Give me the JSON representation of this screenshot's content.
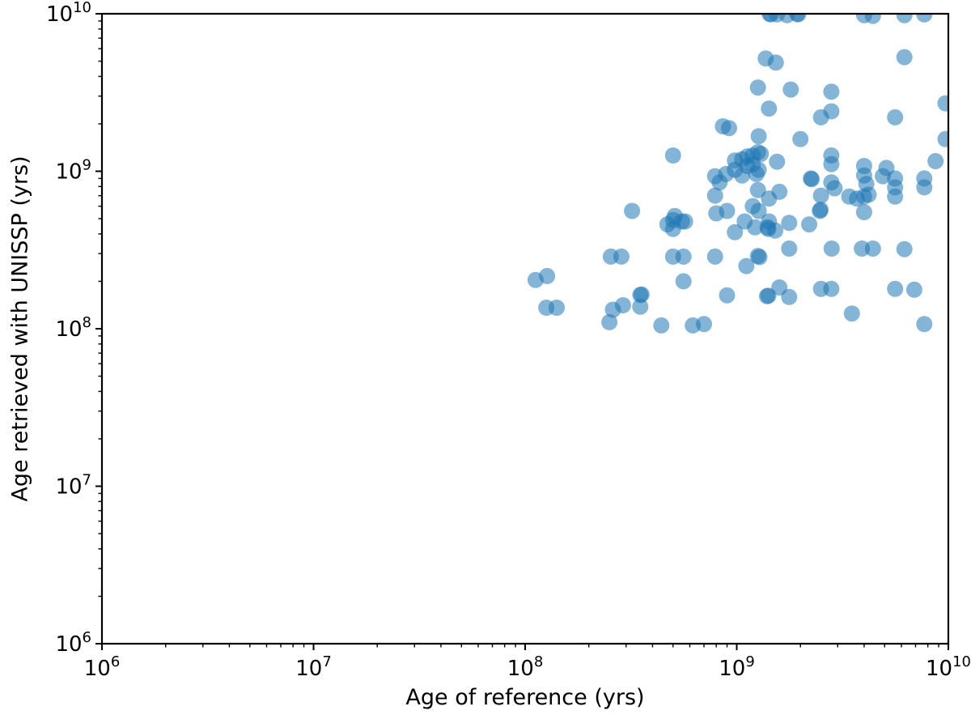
{
  "figure": {
    "background": "#ffffff",
    "axis_color": "#000000"
  },
  "chart_data": {
    "type": "scatter",
    "title": "",
    "xlabel": "Age of reference (yrs)",
    "ylabel": "Age retrieved with UNISSP (yrs)",
    "xscale": "log",
    "yscale": "log",
    "xlim": [
      1000000.0,
      10000000000.0
    ],
    "ylim": [
      1000000.0,
      10000000000.0
    ],
    "x_tick_exponents": [
      6,
      7,
      8,
      9,
      10
    ],
    "y_tick_exponents": [
      6,
      7,
      8,
      9,
      10
    ],
    "grid": false,
    "legend": null,
    "marker": {
      "color": "#1f77b4",
      "opacity": 0.55,
      "radius_px": 10
    },
    "points": [
      [
        1430000000.0,
        10000000000.0
      ],
      [
        1450000000.0,
        9900000000.0
      ],
      [
        1550000000.0,
        9900000000.0
      ],
      [
        1730000000.0,
        9800000000.0
      ],
      [
        1930000000.0,
        10000000000.0
      ],
      [
        1950000000.0,
        9900000000.0
      ],
      [
        4000000000.0,
        9800000000.0
      ],
      [
        4400000000.0,
        9700000000.0
      ],
      [
        6200000000.0,
        9800000000.0
      ],
      [
        7700000000.0,
        9900000000.0
      ],
      [
        1370000000.0,
        5200000000.0
      ],
      [
        1530000000.0,
        4900000000.0
      ],
      [
        6200000000.0,
        5300000000.0
      ],
      [
        1260000000.0,
        3400000000.0
      ],
      [
        1800000000.0,
        3300000000.0
      ],
      [
        2800000000.0,
        3200000000.0
      ],
      [
        1420000000.0,
        2500000000.0
      ],
      [
        2500000000.0,
        2200000000.0
      ],
      [
        2800000000.0,
        2400000000.0
      ],
      [
        5600000000.0,
        2200000000.0
      ],
      [
        9700000000.0,
        2700000000.0
      ],
      [
        1270000000.0,
        1670000000.0
      ],
      [
        2000000000.0,
        1600000000.0
      ],
      [
        9700000000.0,
        1600000000.0
      ],
      [
        860000000.0,
        1930000000.0
      ],
      [
        920000000.0,
        1880000000.0
      ],
      [
        500000000.0,
        1260000000.0
      ],
      [
        1060000000.0,
        1190000000.0
      ],
      [
        1190000000.0,
        1260000000.0
      ],
      [
        1300000000.0,
        1290000000.0
      ],
      [
        1190000000.0,
        1110000000.0
      ],
      [
        1550000000.0,
        1150000000.0
      ],
      [
        980000000.0,
        1170000000.0
      ],
      [
        980000000.0,
        1020000000.0
      ],
      [
        1120000000.0,
        1240000000.0
      ],
      [
        1120000000.0,
        1080000000.0
      ],
      [
        1260000000.0,
        1320000000.0
      ],
      [
        1270000000.0,
        1020000000.0
      ],
      [
        2800000000.0,
        1260000000.0
      ],
      [
        2800000000.0,
        1110000000.0
      ],
      [
        4000000000.0,
        1080000000.0
      ],
      [
        5100000000.0,
        1050000000.0
      ],
      [
        8700000000.0,
        1160000000.0
      ],
      [
        790000000.0,
        930000000.0
      ],
      [
        830000000.0,
        850000000.0
      ],
      [
        890000000.0,
        960000000.0
      ],
      [
        1240000000.0,
        960000000.0
      ],
      [
        1060000000.0,
        940000000.0
      ],
      [
        2240000000.0,
        900000000.0
      ],
      [
        2260000000.0,
        890000000.0
      ],
      [
        2800000000.0,
        850000000.0
      ],
      [
        4000000000.0,
        940000000.0
      ],
      [
        4100000000.0,
        830000000.0
      ],
      [
        4900000000.0,
        930000000.0
      ],
      [
        5600000000.0,
        900000000.0
      ],
      [
        5600000000.0,
        790000000.0
      ],
      [
        7700000000.0,
        900000000.0
      ],
      [
        7700000000.0,
        790000000.0
      ],
      [
        1260000000.0,
        760000000.0
      ],
      [
        1590000000.0,
        740000000.0
      ],
      [
        1420000000.0,
        670000000.0
      ],
      [
        2500000000.0,
        700000000.0
      ],
      [
        2900000000.0,
        780000000.0
      ],
      [
        3400000000.0,
        690000000.0
      ],
      [
        3700000000.0,
        670000000.0
      ],
      [
        4000000000.0,
        690000000.0
      ],
      [
        4200000000.0,
        710000000.0
      ],
      [
        5600000000.0,
        690000000.0
      ],
      [
        790000000.0,
        700000000.0
      ],
      [
        1190000000.0,
        600000000.0
      ],
      [
        1270000000.0,
        560000000.0
      ],
      [
        2470000000.0,
        560000000.0
      ],
      [
        2490000000.0,
        570000000.0
      ],
      [
        4000000000.0,
        550000000.0
      ],
      [
        800000000.0,
        540000000.0
      ],
      [
        900000000.0,
        560000000.0
      ],
      [
        510000000.0,
        520000000.0
      ],
      [
        320000000.0,
        560000000.0
      ],
      [
        500000000.0,
        490000000.0
      ],
      [
        570000000.0,
        480000000.0
      ],
      [
        1090000000.0,
        480000000.0
      ],
      [
        1420000000.0,
        480000000.0
      ],
      [
        1400000000.0,
        440000000.0
      ],
      [
        1410000000.0,
        430000000.0
      ],
      [
        1770000000.0,
        470000000.0
      ],
      [
        2200000000.0,
        460000000.0
      ],
      [
        550000000.0,
        480000000.0
      ],
      [
        470000000.0,
        460000000.0
      ],
      [
        500000000.0,
        430000000.0
      ],
      [
        980000000.0,
        410000000.0
      ],
      [
        1220000000.0,
        440000000.0
      ],
      [
        1520000000.0,
        420000000.0
      ],
      [
        254000000.0,
        287000000.0
      ],
      [
        285000000.0,
        287000000.0
      ],
      [
        500000000.0,
        287000000.0
      ],
      [
        560000000.0,
        287000000.0
      ],
      [
        790000000.0,
        287000000.0
      ],
      [
        1260000000.0,
        290000000.0
      ],
      [
        1280000000.0,
        285000000.0
      ],
      [
        1770000000.0,
        323000000.0
      ],
      [
        2810000000.0,
        323000000.0
      ],
      [
        3900000000.0,
        323000000.0
      ],
      [
        4400000000.0,
        323000000.0
      ],
      [
        6200000000.0,
        320000000.0
      ],
      [
        1110000000.0,
        250000000.0
      ],
      [
        112000000.0,
        204000000.0
      ],
      [
        127000000.0,
        216000000.0
      ],
      [
        560000000.0,
        200000000.0
      ],
      [
        900000000.0,
        163000000.0
      ],
      [
        1590000000.0,
        183000000.0
      ],
      [
        1390000000.0,
        161000000.0
      ],
      [
        1410000000.0,
        162000000.0
      ],
      [
        1770000000.0,
        159000000.0
      ],
      [
        2500000000.0,
        179000000.0
      ],
      [
        2800000000.0,
        179000000.0
      ],
      [
        5600000000.0,
        179000000.0
      ],
      [
        6900000000.0,
        177000000.0
      ],
      [
        350000000.0,
        164000000.0
      ],
      [
        355000000.0,
        165000000.0
      ],
      [
        350000000.0,
        138000000.0
      ],
      [
        126000000.0,
        136000000.0
      ],
      [
        141000000.0,
        136000000.0
      ],
      [
        260000000.0,
        132000000.0
      ],
      [
        290000000.0,
        141000000.0
      ],
      [
        3500000000.0,
        125000000.0
      ],
      [
        250000000.0,
        110000000.0
      ],
      [
        440000000.0,
        105000000.0
      ],
      [
        620000000.0,
        105000000.0
      ],
      [
        700000000.0,
        107000000.0
      ],
      [
        7700000000.0,
        107000000.0
      ]
    ]
  }
}
